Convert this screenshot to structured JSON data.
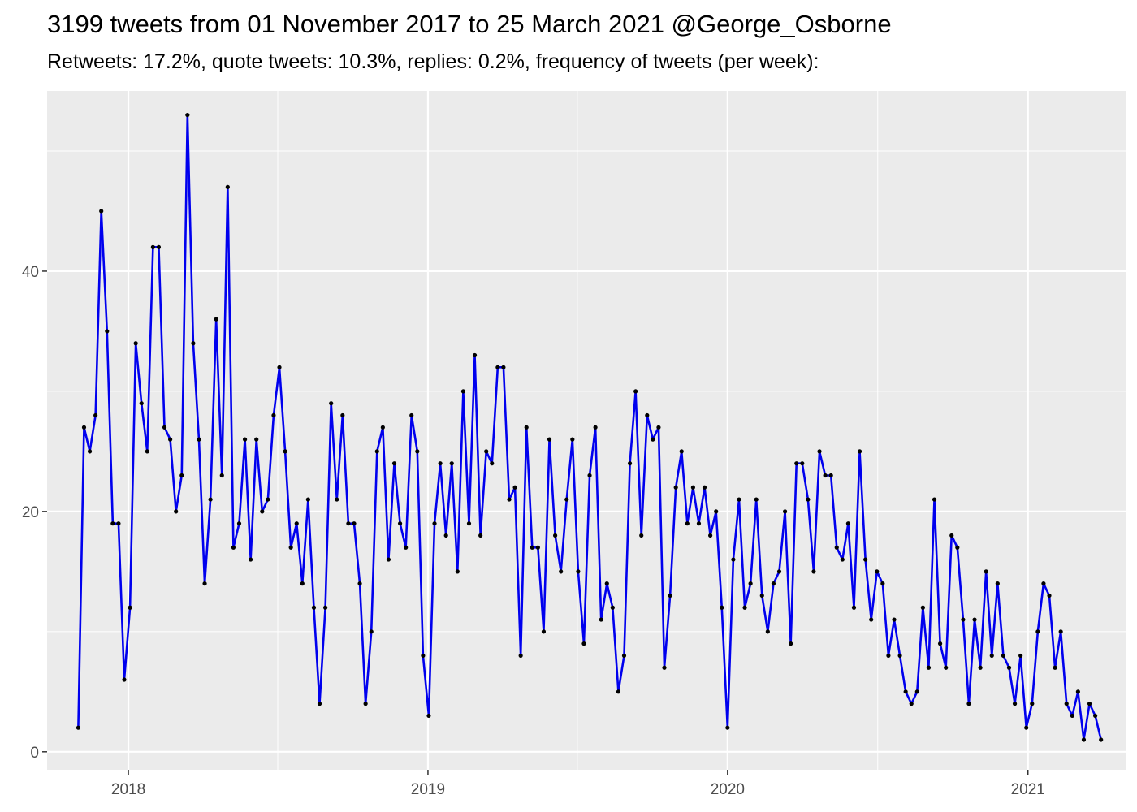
{
  "chart_data": {
    "type": "line",
    "title": "3199 tweets from 01 November 2017 to 25 March 2021 @George_Osborne",
    "subtitle": "Retweets: 17.2%, quote tweets: 10.3%, replies: 0.2%, frequency of tweets (per week):",
    "xlabel": "",
    "ylabel": "",
    "x_ticks": [
      "2018",
      "2019",
      "2020",
      "2021"
    ],
    "y_ticks": [
      0,
      20,
      40
    ],
    "ylim": [
      -1.5,
      55
    ],
    "xlim": [
      "2017-09-24",
      "2021-04-30"
    ],
    "grid": true,
    "colors": {
      "line": "#0000ee",
      "point": "#000000",
      "panel": "#ebebeb",
      "grid": "#ffffff"
    },
    "series": [
      {
        "start": "2017-11-01",
        "interval_days": 7,
        "values": [
          2,
          27,
          25,
          28,
          45,
          35,
          19,
          19,
          6,
          12,
          34,
          29,
          25,
          42,
          42,
          27,
          26,
          20,
          23,
          53,
          34,
          26,
          14,
          21,
          36,
          23,
          47,
          17,
          19,
          26,
          16,
          26,
          20,
          21,
          28,
          32,
          25,
          17,
          19,
          14,
          21,
          12,
          4,
          12,
          29,
          21,
          28,
          19,
          19,
          14,
          4,
          10,
          25,
          27,
          16,
          24,
          19,
          17,
          28,
          25,
          8,
          3,
          19,
          24,
          18,
          24,
          15,
          30,
          19,
          33,
          18,
          25,
          24,
          32,
          32,
          21,
          22,
          8,
          27,
          17,
          17,
          10,
          26,
          18,
          15,
          21,
          26,
          15,
          9,
          23,
          27,
          11,
          14,
          12,
          5,
          8,
          24,
          30,
          18,
          28,
          26,
          27,
          7,
          13,
          22,
          25,
          19,
          22,
          19,
          22,
          18,
          20,
          12,
          2,
          16,
          21,
          12,
          14,
          21,
          13,
          10,
          14,
          15,
          20,
          9,
          24,
          24,
          21,
          15,
          25,
          23,
          23,
          17,
          16,
          19,
          12,
          25,
          16,
          11,
          15,
          14,
          8,
          11,
          8,
          5,
          4,
          5,
          12,
          7,
          21,
          9,
          7,
          18,
          17,
          11,
          4,
          11,
          7,
          15,
          8,
          14,
          8,
          7,
          4,
          8,
          2,
          4,
          10,
          14,
          13,
          7,
          10,
          4,
          3,
          5,
          1,
          4,
          3,
          1
        ]
      }
    ]
  }
}
